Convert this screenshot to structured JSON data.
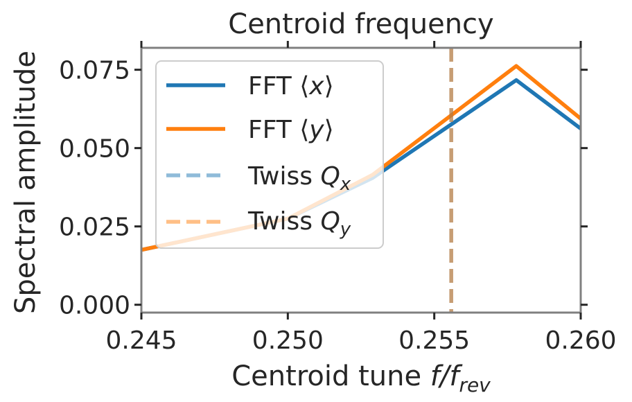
{
  "chart_data": {
    "type": "line",
    "title": "Centroid frequency",
    "xlabel_main": "Centroid tune ",
    "xlabel_math": "f/f",
    "xlabel_sub": "rev",
    "ylabel": "Spectral amplitude",
    "xlim": [
      0.245,
      0.26
    ],
    "ylim": [
      -0.0025,
      0.082
    ],
    "xticks": [
      {
        "value": 0.245,
        "label": "0.245"
      },
      {
        "value": 0.25,
        "label": "0.250"
      },
      {
        "value": 0.255,
        "label": "0.255"
      },
      {
        "value": 0.26,
        "label": "0.260"
      }
    ],
    "yticks": [
      {
        "value": 0.0,
        "label": "0.000"
      },
      {
        "value": 0.025,
        "label": "0.025"
      },
      {
        "value": 0.05,
        "label": "0.050"
      },
      {
        "value": 0.075,
        "label": "0.075"
      }
    ],
    "grid": false,
    "legend_position": "upper-left",
    "series": [
      {
        "legend_text": "FFT ⟨",
        "legend_math": "x",
        "legend_tail": "⟩",
        "color": "#1f77b4",
        "style": "solid",
        "x": [
          0.245,
          0.25,
          0.2529,
          0.2578,
          0.26
        ],
        "y": [
          0.0175,
          0.0275,
          0.0405,
          0.0717,
          0.0562
        ]
      },
      {
        "legend_text": "FFT ⟨",
        "legend_math": "y",
        "legend_tail": "⟩",
        "color": "#ff7f0e",
        "style": "solid",
        "x": [
          0.245,
          0.25,
          0.2529,
          0.2578,
          0.26
        ],
        "y": [
          0.0175,
          0.0275,
          0.0415,
          0.0762,
          0.0594
        ]
      }
    ],
    "vlines": [
      {
        "legend_text": "Twiss ",
        "legend_math": "Q",
        "legend_sub": "x",
        "color": "#1f77b4",
        "alpha": 0.5,
        "style": "dashed",
        "x": 0.25558
      },
      {
        "legend_text": "Twiss ",
        "legend_math": "Q",
        "legend_sub": "y",
        "color": "#ff7f0e",
        "alpha": 0.5,
        "style": "dashed",
        "x": 0.25558
      }
    ]
  }
}
